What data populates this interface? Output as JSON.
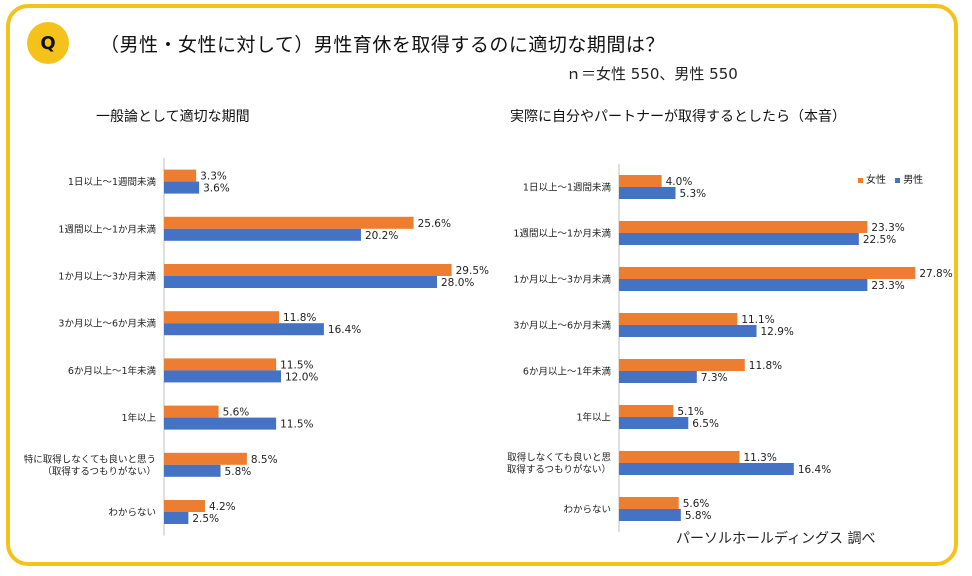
{
  "header": {
    "badge": "Q",
    "question": "（男性・女性に対して）男性育休を取得するのに適切な期間は？",
    "sample": "ｎ＝女性 550、男性 550"
  },
  "source": "パーソルホールディングス 調べ",
  "colors": {
    "female": "#ed7d31",
    "male": "#4472c4",
    "axis": "#bfbfbf",
    "frame": "#f5c21b"
  },
  "legend": {
    "female": "女性",
    "male": "男性"
  },
  "chart_data": [
    {
      "type": "bar",
      "orientation": "horizontal",
      "title": "一般論として適切な期間",
      "categories": [
        "1日以上～1週間未満",
        "1週間以上～1か月未満",
        "1か月以上～3か月未満",
        "3か月以上～6か月未満",
        "6か月以上～1年未満",
        "1年以上",
        "特に取得しなくても良いと思う\n（取得するつもりがない）",
        "わからない"
      ],
      "series": [
        {
          "name": "女性",
          "values": [
            3.3,
            25.6,
            29.5,
            11.8,
            11.5,
            5.6,
            8.5,
            4.2
          ]
        },
        {
          "name": "男性",
          "values": [
            3.6,
            20.2,
            28.0,
            16.4,
            12.0,
            11.5,
            5.8,
            2.5
          ]
        }
      ],
      "unit": "%",
      "grid": false
    },
    {
      "type": "bar",
      "orientation": "horizontal",
      "title": "実際に自分やパートナーが取得するとしたら（本音）",
      "categories": [
        "1日以上～1週間未満",
        "1週間以上～1か月未満",
        "1か月以上～3か月未満",
        "3か月以上～6か月未満",
        "6か月以上～1年未満",
        "1年以上",
        "取得しなくても良いと思\n取得するつもりがない）",
        "わからない"
      ],
      "series": [
        {
          "name": "女性",
          "values": [
            4.0,
            23.3,
            27.8,
            11.1,
            11.8,
            5.1,
            11.3,
            5.6
          ]
        },
        {
          "name": "男性",
          "values": [
            5.3,
            22.5,
            23.3,
            12.9,
            7.3,
            6.5,
            16.4,
            5.8
          ]
        }
      ],
      "unit": "%",
      "legend_position": "top-right",
      "grid": false
    }
  ]
}
